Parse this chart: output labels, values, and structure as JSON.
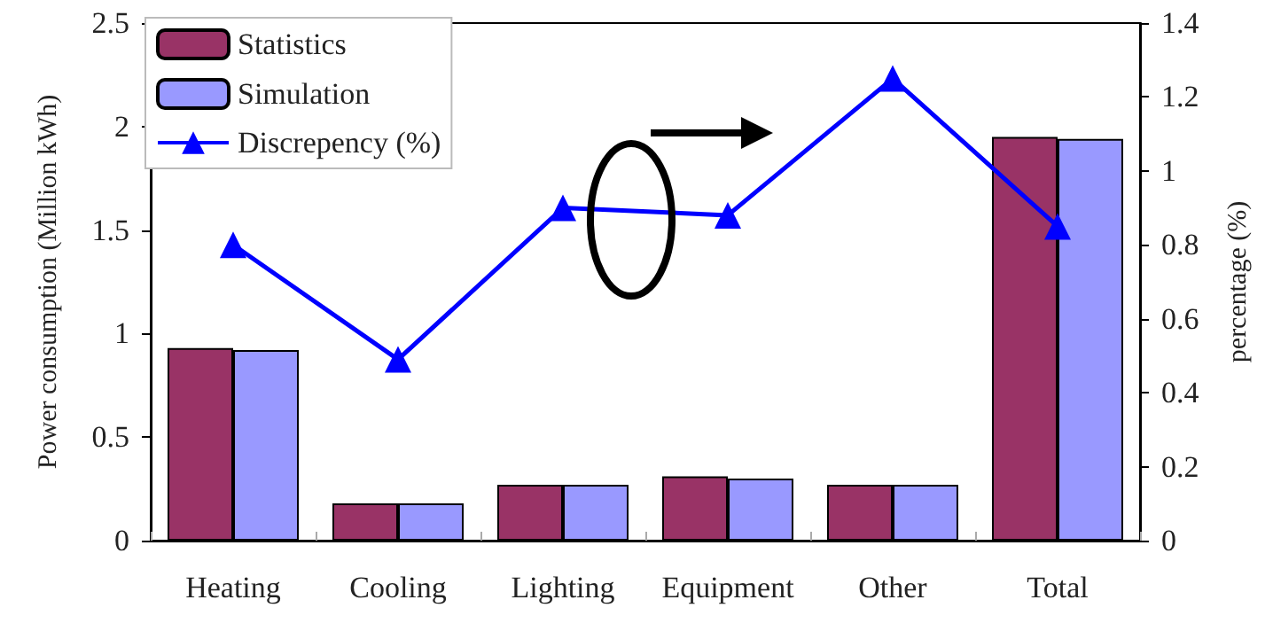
{
  "chart_data": {
    "type": "bar",
    "categories": [
      "Heating",
      "Cooling",
      "Lighting",
      "Equipment",
      "Other",
      "Total"
    ],
    "series": [
      {
        "name": "Statistics",
        "color": "#993366",
        "values": [
          0.93,
          0.18,
          0.27,
          0.31,
          0.27,
          1.95
        ]
      },
      {
        "name": "Simulation",
        "color": "#9999ff",
        "values": [
          0.92,
          0.18,
          0.27,
          0.3,
          0.27,
          1.94
        ]
      },
      {
        "name": "Discrepency (%)",
        "type": "line",
        "axis": "y2",
        "color": "#0000ff",
        "marker": "triangle",
        "values": [
          0.8,
          0.49,
          0.9,
          0.88,
          1.25,
          0.85
        ]
      }
    ],
    "ylabel": "Power consumption (Million kWh)",
    "y2label": "percentage (%)",
    "ylim": [
      0,
      2.5
    ],
    "yticks": [
      0,
      0.5,
      1,
      1.5,
      2,
      2.5
    ],
    "y2lim": [
      0,
      1.4
    ],
    "y2ticks": [
      0,
      0.2,
      0.4,
      0.6,
      0.8,
      1,
      1.2,
      1.4
    ],
    "grid": false,
    "legend": "top left"
  }
}
